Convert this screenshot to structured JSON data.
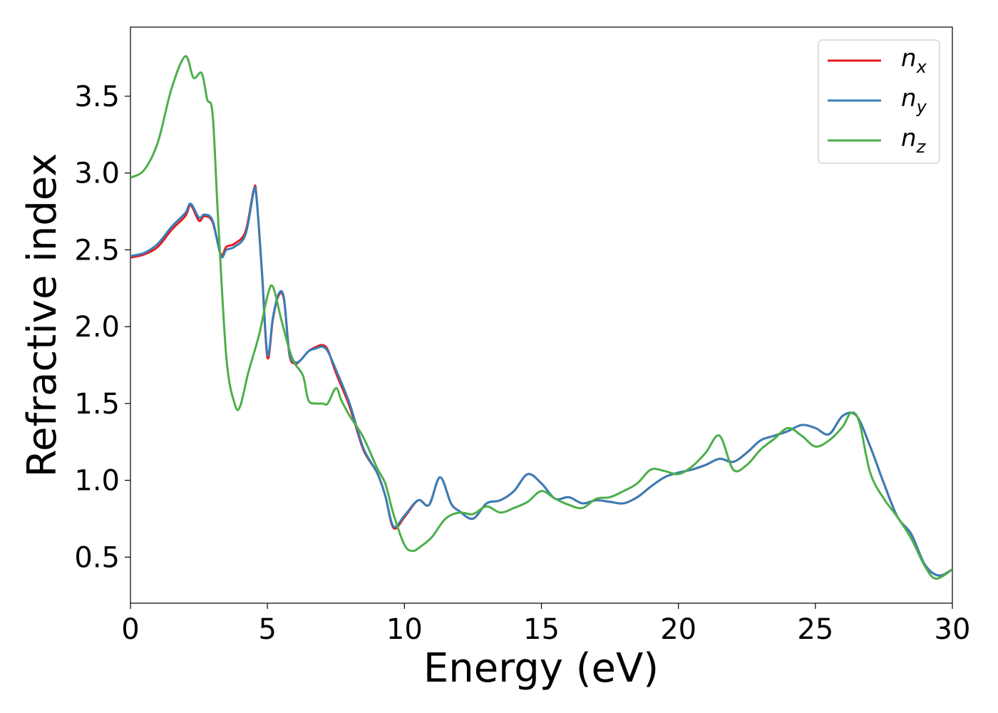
{
  "chart_data": {
    "type": "line",
    "title": "",
    "xlabel": "Energy (eV)",
    "ylabel": "Refractive index",
    "xlim": [
      0,
      30
    ],
    "ylim": [
      0.2,
      3.95
    ],
    "xticks": [
      0,
      5,
      10,
      15,
      20,
      25,
      30
    ],
    "xtick_labels": [
      "0",
      "5",
      "10",
      "15",
      "20",
      "25",
      "30"
    ],
    "yticks": [
      0.5,
      1.0,
      1.5,
      2.0,
      2.5,
      3.0,
      3.5
    ],
    "ytick_labels": [
      "0.5",
      "1.0",
      "1.5",
      "2.0",
      "2.5",
      "3.0",
      "3.5"
    ],
    "grid": false,
    "legend_position": "top-right",
    "series": [
      {
        "name": "n",
        "subscript": "x",
        "color": "#e41a1c",
        "x": [
          0,
          0.5,
          1.0,
          1.5,
          2.0,
          2.2,
          2.5,
          2.7,
          3.0,
          3.3,
          3.5,
          3.8,
          4.2,
          4.5,
          4.6,
          4.8,
          5.0,
          5.2,
          5.4,
          5.6,
          5.8,
          6.0,
          6.2,
          6.5,
          6.8,
          7.0,
          7.2,
          7.5,
          8.0,
          8.5,
          9.0,
          9.3,
          9.6,
          10.0,
          10.5,
          10.9,
          11.3,
          11.7,
          12.0,
          12.5,
          13.0,
          13.5,
          14.0,
          14.5,
          15.0,
          15.5,
          16.0,
          16.5,
          17.0,
          17.5,
          18.0,
          18.5,
          19.0,
          19.5,
          20.0,
          20.5,
          21.0,
          21.5,
          22.0,
          22.5,
          23.0,
          23.5,
          24.0,
          24.5,
          25.0,
          25.5,
          26.0,
          26.5,
          27.0,
          27.5,
          28.0,
          28.5,
          29.0,
          29.5,
          30.0
        ],
        "y": [
          2.45,
          2.47,
          2.52,
          2.63,
          2.72,
          2.79,
          2.69,
          2.72,
          2.68,
          2.47,
          2.52,
          2.54,
          2.62,
          2.89,
          2.85,
          2.35,
          1.8,
          2.05,
          2.2,
          2.18,
          1.82,
          1.76,
          1.78,
          1.84,
          1.87,
          1.88,
          1.85,
          1.7,
          1.48,
          1.2,
          1.05,
          0.9,
          0.69,
          0.76,
          0.87,
          0.84,
          1.02,
          0.85,
          0.8,
          0.75,
          0.85,
          0.87,
          0.93,
          1.04,
          0.98,
          0.88,
          0.89,
          0.85,
          0.87,
          0.86,
          0.85,
          0.89,
          0.96,
          1.02,
          1.05,
          1.07,
          1.1,
          1.14,
          1.12,
          1.18,
          1.26,
          1.29,
          1.32,
          1.36,
          1.34,
          1.3,
          1.42,
          1.42,
          1.22,
          0.98,
          0.76,
          0.65,
          0.45,
          0.38,
          0.42
        ]
      },
      {
        "name": "n",
        "subscript": "y",
        "color": "#377eb8",
        "x": [
          0,
          0.5,
          1.0,
          1.5,
          2.0,
          2.2,
          2.5,
          2.7,
          3.0,
          3.3,
          3.5,
          3.8,
          4.2,
          4.5,
          4.6,
          4.8,
          5.0,
          5.2,
          5.4,
          5.6,
          5.8,
          6.0,
          6.2,
          6.5,
          6.8,
          7.0,
          7.2,
          7.5,
          8.0,
          8.5,
          9.0,
          9.3,
          9.6,
          10.0,
          10.5,
          10.9,
          11.3,
          11.7,
          12.0,
          12.5,
          13.0,
          13.5,
          14.0,
          14.5,
          15.0,
          15.5,
          16.0,
          16.5,
          17.0,
          17.5,
          18.0,
          18.5,
          19.0,
          19.5,
          20.0,
          20.5,
          21.0,
          21.5,
          22.0,
          22.5,
          23.0,
          23.5,
          24.0,
          24.5,
          25.0,
          25.5,
          26.0,
          26.5,
          27.0,
          27.5,
          28.0,
          28.5,
          29.0,
          29.5,
          30.0
        ],
        "y": [
          2.46,
          2.48,
          2.54,
          2.65,
          2.74,
          2.8,
          2.71,
          2.73,
          2.69,
          2.46,
          2.5,
          2.52,
          2.6,
          2.88,
          2.84,
          2.36,
          1.82,
          2.06,
          2.21,
          2.19,
          1.83,
          1.77,
          1.78,
          1.84,
          1.86,
          1.87,
          1.84,
          1.72,
          1.5,
          1.21,
          1.05,
          0.9,
          0.7,
          0.77,
          0.87,
          0.84,
          1.02,
          0.85,
          0.8,
          0.75,
          0.85,
          0.87,
          0.93,
          1.04,
          0.98,
          0.88,
          0.89,
          0.85,
          0.87,
          0.86,
          0.85,
          0.89,
          0.96,
          1.02,
          1.05,
          1.07,
          1.1,
          1.14,
          1.12,
          1.18,
          1.26,
          1.29,
          1.32,
          1.36,
          1.34,
          1.3,
          1.42,
          1.42,
          1.22,
          0.98,
          0.76,
          0.65,
          0.45,
          0.38,
          0.42
        ]
      },
      {
        "name": "n",
        "subscript": "z",
        "color": "#4daf4a",
        "x": [
          0,
          0.5,
          1.0,
          1.5,
          2.0,
          2.3,
          2.6,
          2.8,
          3.0,
          3.2,
          3.5,
          3.8,
          4.0,
          4.3,
          4.7,
          5.0,
          5.2,
          5.5,
          5.8,
          6.0,
          6.3,
          6.5,
          6.8,
          7.0,
          7.2,
          7.5,
          7.7,
          8.0,
          8.5,
          9.0,
          9.3,
          9.6,
          10.0,
          10.3,
          10.6,
          11.0,
          11.5,
          12.0,
          12.5,
          13.0,
          13.5,
          14.0,
          14.5,
          15.0,
          15.5,
          16.0,
          16.5,
          17.0,
          17.5,
          18.0,
          18.5,
          19.0,
          19.5,
          20.0,
          20.5,
          21.0,
          21.5,
          22.0,
          22.5,
          23.0,
          23.5,
          24.0,
          24.5,
          25.0,
          25.5,
          26.0,
          26.3,
          26.6,
          27.0,
          27.5,
          28.0,
          28.5,
          29.0,
          29.4,
          30.0
        ],
        "y": [
          2.97,
          3.02,
          3.2,
          3.55,
          3.76,
          3.62,
          3.65,
          3.48,
          3.38,
          2.7,
          1.8,
          1.5,
          1.48,
          1.7,
          1.95,
          2.2,
          2.26,
          2.05,
          1.85,
          1.76,
          1.68,
          1.52,
          1.5,
          1.5,
          1.5,
          1.6,
          1.52,
          1.42,
          1.28,
          1.08,
          0.98,
          0.78,
          0.58,
          0.54,
          0.57,
          0.63,
          0.75,
          0.79,
          0.78,
          0.83,
          0.79,
          0.82,
          0.86,
          0.93,
          0.88,
          0.84,
          0.82,
          0.88,
          0.89,
          0.93,
          0.98,
          1.07,
          1.06,
          1.04,
          1.09,
          1.18,
          1.29,
          1.07,
          1.1,
          1.2,
          1.27,
          1.34,
          1.29,
          1.22,
          1.26,
          1.35,
          1.44,
          1.38,
          1.05,
          0.88,
          0.76,
          0.62,
          0.44,
          0.36,
          0.42
        ]
      }
    ]
  }
}
